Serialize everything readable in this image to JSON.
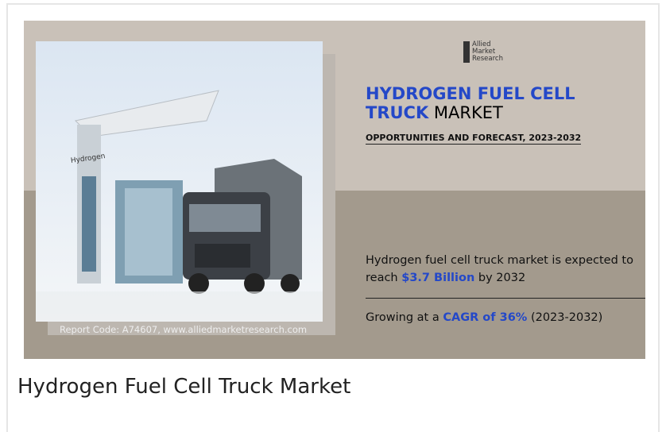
{
  "image": {
    "logo": [
      "Allied",
      "Market",
      "Research"
    ],
    "title_highlight": "HYDROGEN FUEL CELL TRUCK",
    "title_rest": "MARKET",
    "subtitle": "OPPORTUNITIES AND FORECAST, 2023-2032",
    "stat1": {
      "before": "Hydrogen fuel cell truck market is expected to reach",
      "highlight": "$3.7 Billion",
      "after": "by 2032"
    },
    "stat2": {
      "before": "Growing at a",
      "highlight": "CAGR of 36%",
      "after": "(2023-2032)"
    },
    "station_sign": "Hydrogen",
    "report_code": "Report Code: A74607, www.alliedmarketresearch.com"
  },
  "caption": "Hydrogen Fuel Cell Truck Market"
}
